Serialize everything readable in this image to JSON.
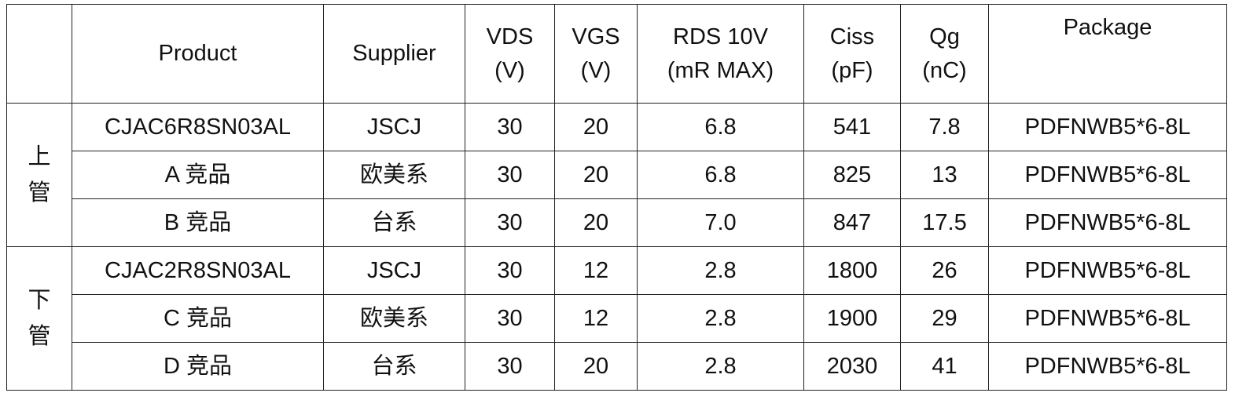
{
  "headers": [
    {
      "line1": "",
      "line2": ""
    },
    {
      "line1": "Product",
      "line2": ""
    },
    {
      "line1": "Supplier",
      "line2": ""
    },
    {
      "line1": "VDS",
      "line2": "(V)"
    },
    {
      "line1": "VGS",
      "line2": "(V)"
    },
    {
      "line1": "RDS 10V",
      "line2": "(mR MAX)"
    },
    {
      "line1": "Ciss",
      "line2": "(pF)"
    },
    {
      "line1": "Qg",
      "line2": "(nC)"
    },
    {
      "line1": "Package",
      "line2": ""
    }
  ],
  "groups": [
    {
      "label1": "上",
      "label2": "管"
    },
    {
      "label1": "下",
      "label2": "管"
    }
  ],
  "rows": [
    [
      "CJAC6R8SN03AL",
      "JSCJ",
      "30",
      "20",
      "6.8",
      "541",
      "7.8",
      "PDFNWB5*6-8L"
    ],
    [
      "A 竞品",
      "欧美系",
      "30",
      "20",
      "6.8",
      "825",
      "13",
      "PDFNWB5*6-8L"
    ],
    [
      "B 竞品",
      "台系",
      "30",
      "20",
      "7.0",
      "847",
      "17.5",
      "PDFNWB5*6-8L"
    ],
    [
      "CJAC2R8SN03AL",
      "JSCJ",
      "30",
      "12",
      "2.8",
      "1800",
      "26",
      "PDFNWB5*6-8L"
    ],
    [
      "C 竞品",
      "欧美系",
      "30",
      "12",
      "2.8",
      "1900",
      "29",
      "PDFNWB5*6-8L"
    ],
    [
      "D 竞品",
      "台系",
      "30",
      "20",
      "2.8",
      "2030",
      "41",
      "PDFNWB5*6-8L"
    ]
  ]
}
